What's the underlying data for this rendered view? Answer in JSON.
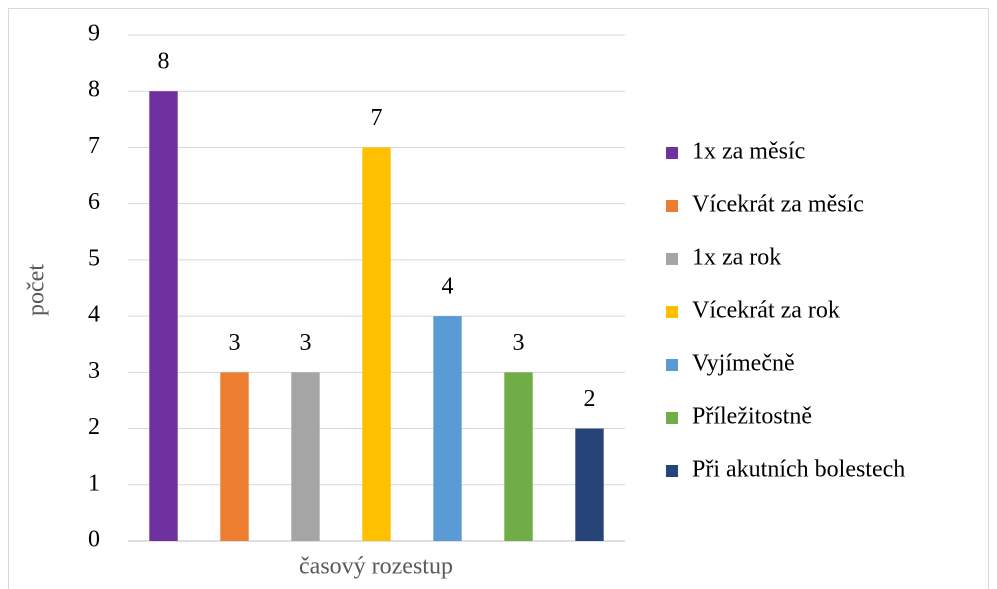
{
  "chart_data": {
    "type": "bar",
    "y_label": "počet",
    "x_label": "časový rozestup",
    "categories": [
      null
    ],
    "series": [
      {
        "name": "1x za měsíc",
        "color": "#7030a0",
        "values": [
          8
        ]
      },
      {
        "name": "Vícekrát za měsíc",
        "color": "#ed7d31",
        "values": [
          3
        ]
      },
      {
        "name": "1x za rok",
        "color": "#a5a5a5",
        "values": [
          3
        ]
      },
      {
        "name": "Vícekrát za rok",
        "color": "#ffc000",
        "values": [
          7
        ]
      },
      {
        "name": "Vyjímečně",
        "color": "#5b9bd5",
        "values": [
          4
        ]
      },
      {
        "name": "Příležitostně",
        "color": "#70ad47",
        "values": [
          3
        ]
      },
      {
        "name": "Při akutních bolestech",
        "color": "#264478",
        "values": [
          2
        ]
      }
    ],
    "ylim": [
      0,
      9
    ],
    "yticks": [
      0,
      1,
      2,
      3,
      4,
      5,
      6,
      7,
      8,
      9
    ],
    "grid": true,
    "legend": "right",
    "data_labels": true
  }
}
